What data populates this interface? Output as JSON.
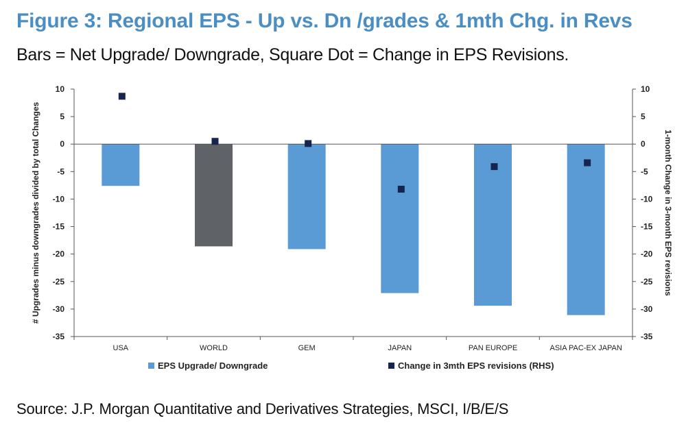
{
  "header": {
    "title": "Figure 3: Regional EPS - Up vs. Dn /grades & 1mth Chg. in Revs",
    "subtitle": "Bars = Net Upgrade/ Downgrade, Square Dot = Change in EPS Revisions."
  },
  "footer": {
    "source": "Source: J.P. Morgan Quantitative and Derivatives Strategies, MSCI, I/B/E/S"
  },
  "colors": {
    "bar": "#5b9bd5",
    "bar_highlight": "#5f6368",
    "dot": "#15254f",
    "axis": "#555555",
    "title": "#4a8ec4"
  },
  "chart_data": {
    "type": "bar",
    "categories": [
      "USA",
      "WORLD",
      "GEM",
      "JAPAN",
      "PAN EUROPE",
      "ASIA PAC-EX JAPAN"
    ],
    "highlight_category": "WORLD",
    "series": [
      {
        "name": "EPS Upgrade/ Downgrade",
        "type": "bar",
        "axis": "left",
        "values": [
          -7.6,
          -18.6,
          -19.1,
          -27.1,
          -29.4,
          -31.1
        ]
      },
      {
        "name": "Change in 3mth EPS revisions (RHS)",
        "type": "scatter",
        "axis": "right",
        "values": [
          8.7,
          0.5,
          0.1,
          -8.2,
          -4.1,
          -3.4
        ]
      }
    ],
    "ylabel": "# Upgrades minus downgrades divided by total Changes",
    "y2label": "1-month Change in 3-month EPS revisions",
    "ylim": [
      -35,
      10
    ],
    "y2lim": [
      -35,
      10
    ],
    "yticks": [
      10,
      5,
      0,
      -5,
      -10,
      -15,
      -20,
      -25,
      -30,
      -35
    ],
    "y2ticks": [
      10,
      5,
      0,
      -5,
      -10,
      -15,
      -20,
      -25,
      -30,
      -35
    ],
    "legend": [
      "EPS Upgrade/ Downgrade",
      "Change in 3mth EPS revisions (RHS)"
    ],
    "legend_position": "bottom",
    "grid": false
  }
}
